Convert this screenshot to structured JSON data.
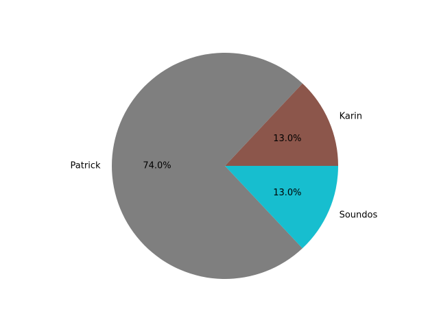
{
  "chart_data": {
    "type": "pie",
    "categories": [
      "Karin",
      "Patrick",
      "Soundos"
    ],
    "values": [
      13.0,
      74.0,
      13.0
    ],
    "percent_labels": [
      "13.0%",
      "74.0%",
      "13.0%"
    ],
    "colors": [
      "#8c564b",
      "#7f7f7f",
      "#17becf"
    ],
    "start_angle": 0,
    "direction": "counterclockwise",
    "title": "",
    "legend": "none"
  }
}
